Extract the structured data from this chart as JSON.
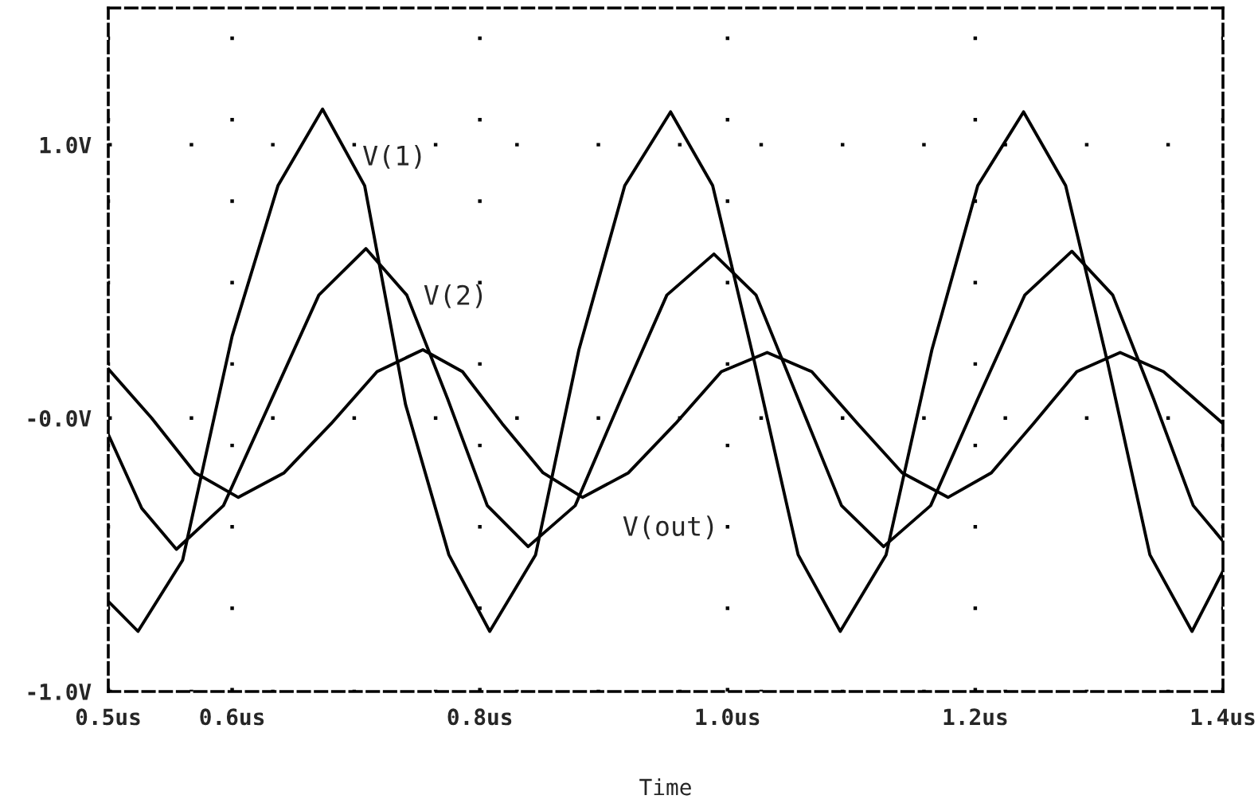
{
  "chart_data": {
    "type": "line",
    "xlabel": "Time",
    "xlim": [
      0.5,
      1.4
    ],
    "xticks": [
      {
        "value": 0.5,
        "label": "0.5us"
      },
      {
        "value": 0.6,
        "label": "0.6us"
      },
      {
        "value": 0.8,
        "label": "0.8us"
      },
      {
        "value": 1.0,
        "label": "1.0us"
      },
      {
        "value": 1.2,
        "label": "1.2us"
      },
      {
        "value": 1.4,
        "label": "1.4us"
      }
    ],
    "ylim": [
      -1.0,
      1.5
    ],
    "yticks": [
      {
        "value": -1.0,
        "label": "-1.0V"
      },
      {
        "value": 0,
        "label": "-0.0V"
      },
      {
        "value": 1.0,
        "label": "1.0V"
      }
    ],
    "grid": true,
    "line_style": "solid",
    "marker": "none",
    "series": [
      {
        "name": "V(1)",
        "color": "#000000",
        "x": [
          0.5,
          0.524,
          0.56,
          0.6,
          0.637,
          0.673,
          0.707,
          0.74,
          0.775,
          0.808,
          0.845,
          0.88,
          0.917,
          0.954,
          0.988,
          1.022,
          1.057,
          1.091,
          1.128,
          1.165,
          1.202,
          1.239,
          1.273,
          1.307,
          1.341,
          1.375,
          1.4
        ],
        "values": [
          -0.67,
          -0.78,
          -0.52,
          0.3,
          0.85,
          1.13,
          0.85,
          0.05,
          -0.5,
          -0.78,
          -0.5,
          0.25,
          0.85,
          1.12,
          0.85,
          0.2,
          -0.5,
          -0.78,
          -0.5,
          0.25,
          0.85,
          1.12,
          0.85,
          0.2,
          -0.5,
          -0.78,
          -0.56
        ]
      },
      {
        "name": "V(2)",
        "color": "#000000",
        "x": [
          0.5,
          0.527,
          0.555,
          0.593,
          0.63,
          0.67,
          0.708,
          0.741,
          0.774,
          0.806,
          0.839,
          0.877,
          0.914,
          0.951,
          0.989,
          1.023,
          1.057,
          1.092,
          1.126,
          1.164,
          1.202,
          1.24,
          1.278,
          1.311,
          1.344,
          1.376,
          1.4
        ],
        "values": [
          -0.06,
          -0.33,
          -0.48,
          -0.32,
          0.05,
          0.45,
          0.62,
          0.45,
          0.07,
          -0.32,
          -0.47,
          -0.32,
          0.07,
          0.45,
          0.6,
          0.45,
          0.07,
          -0.32,
          -0.47,
          -0.32,
          0.07,
          0.45,
          0.61,
          0.45,
          0.07,
          -0.32,
          -0.45
        ]
      },
      {
        "name": "V(out)",
        "color": "#000000",
        "x": [
          0.5,
          0.535,
          0.57,
          0.605,
          0.642,
          0.68,
          0.717,
          0.754,
          0.786,
          0.818,
          0.851,
          0.883,
          0.92,
          0.958,
          0.995,
          1.032,
          1.068,
          1.105,
          1.141,
          1.178,
          1.213,
          1.247,
          1.282,
          1.317,
          1.352,
          1.4
        ],
        "values": [
          0.18,
          0.0,
          -0.2,
          -0.29,
          -0.2,
          -0.02,
          0.17,
          0.25,
          0.17,
          -0.02,
          -0.2,
          -0.29,
          -0.2,
          -0.02,
          0.17,
          0.24,
          0.17,
          -0.02,
          -0.2,
          -0.29,
          -0.2,
          -0.02,
          0.17,
          0.24,
          0.17,
          -0.02
        ]
      }
    ]
  }
}
